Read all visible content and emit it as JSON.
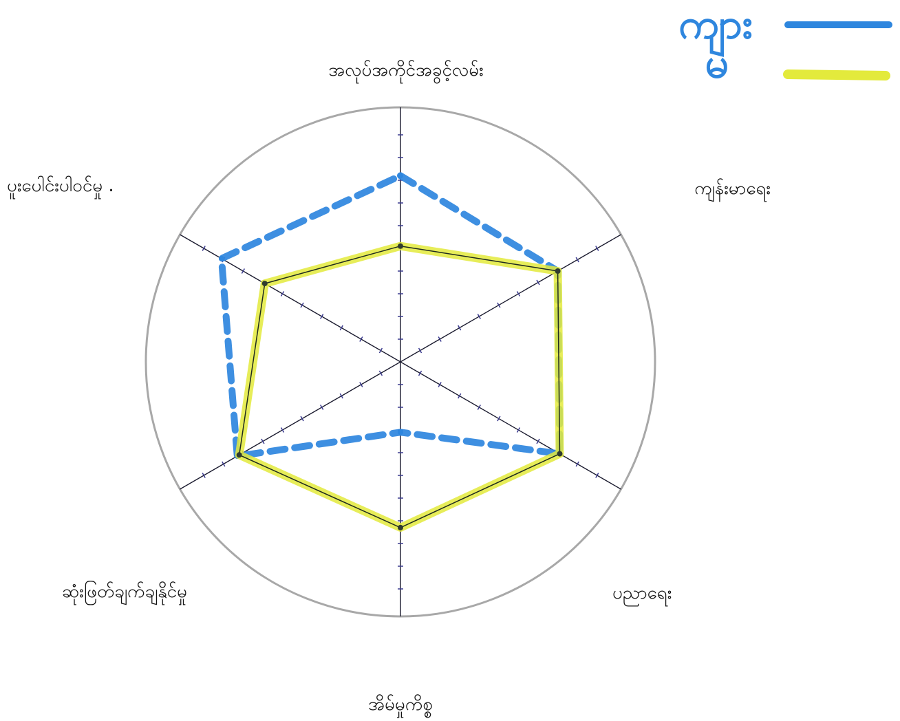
{
  "chart_data": {
    "type": "radar",
    "title": "",
    "axes": [
      "အလုပ်အကိုင်အခွင့်လမ်း",
      "ကျန်းမာရေး",
      "ပညာရေး",
      "အိမ်မှုကိစ္စ",
      "ဆုံးဖြတ်ချက်ချနိုင်မှု",
      "ပူးပေါင်းပါဝင်မှု ."
    ],
    "scale_max": 10,
    "ticks": 10,
    "grid": false,
    "legend_position": "top-right",
    "series": [
      {
        "name": "ကျား",
        "color": "#2e86de",
        "style": "dashed",
        "values": [
          8.2,
          8.0,
          8.1,
          3.1,
          8.3,
          9.1
        ]
      },
      {
        "name": "မ",
        "color": "#e3ea3c",
        "style": "solid",
        "values": [
          5.1,
          8.0,
          8.1,
          7.3,
          8.2,
          6.9
        ]
      }
    ]
  }
}
